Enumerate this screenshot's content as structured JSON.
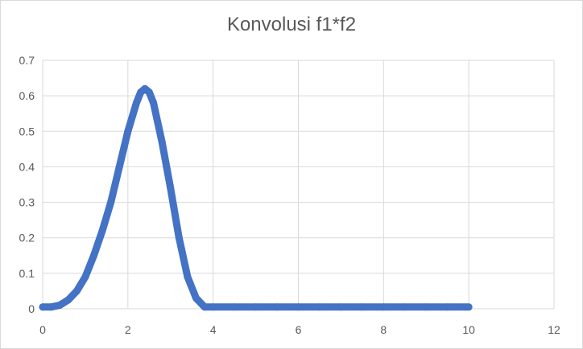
{
  "chart_data": {
    "type": "scatter",
    "title": "Konvolusi f1*f2",
    "xlabel": "",
    "ylabel": "",
    "xlim": [
      0,
      12
    ],
    "ylim": [
      0,
      0.7
    ],
    "x_ticks": [
      0,
      2,
      4,
      6,
      8,
      10,
      12
    ],
    "y_ticks": [
      0,
      0.1,
      0.2,
      0.3,
      0.4,
      0.5,
      0.6,
      0.7
    ],
    "x_tick_labels": [
      "0",
      "2",
      "4",
      "6",
      "8",
      "10",
      "12"
    ],
    "y_tick_labels": [
      "0",
      "0.1",
      "0.2",
      "0.3",
      "0.4",
      "0.5",
      "0.6",
      "0.7"
    ],
    "grid": true,
    "legend": "none",
    "series_color": "#4472c4",
    "series": [
      {
        "x": [
          0,
          0.2,
          0.4,
          0.6,
          0.8,
          1.0,
          1.2,
          1.4,
          1.6,
          1.8,
          2.0,
          2.2,
          2.3,
          2.4,
          2.5,
          2.6,
          2.8,
          3.0,
          3.2,
          3.4,
          3.6,
          3.8,
          4.0,
          4.5,
          5.0,
          5.5,
          6.0,
          6.5,
          7.0,
          7.5,
          8.0,
          8.5,
          9.0,
          9.5,
          10.0
        ],
        "y": [
          0.005,
          0.005,
          0.01,
          0.025,
          0.05,
          0.09,
          0.15,
          0.22,
          0.3,
          0.4,
          0.5,
          0.58,
          0.61,
          0.62,
          0.61,
          0.58,
          0.47,
          0.34,
          0.2,
          0.09,
          0.03,
          0.005,
          0.005,
          0.005,
          0.005,
          0.005,
          0.005,
          0.005,
          0.005,
          0.005,
          0.005,
          0.005,
          0.005,
          0.005,
          0.005
        ]
      }
    ]
  }
}
